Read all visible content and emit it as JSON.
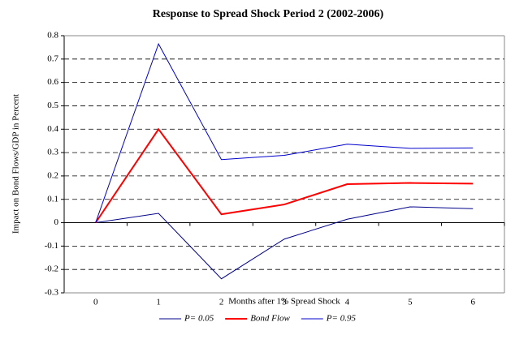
{
  "chart_data": {
    "type": "line",
    "title": "Response to Spread Shock Period 2 (2002-2006)",
    "x_label": "Months after 1% Spread Shock",
    "y_label": "Impact on Bond Flows/GDP in Percent",
    "categories": [
      "0",
      "1",
      "2",
      "3",
      "4",
      "5",
      "6"
    ],
    "series": [
      {
        "name": "P= 0.05",
        "color": "#00008b",
        "line_width": 1,
        "values": [
          0,
          0.04,
          -0.24,
          -0.07,
          0.015,
          0.068,
          0.06
        ]
      },
      {
        "name": "Bond Flow",
        "color": "#ff0000",
        "line_width": 2,
        "values": [
          0,
          0.4,
          0.036,
          0.078,
          0.165,
          0.17,
          0.167
        ]
      },
      {
        "name": "P= 0.95",
        "color": "#0000cd",
        "line_width": 1,
        "values": [
          0,
          0.765,
          0.27,
          0.288,
          0.336,
          0.318,
          0.32
        ]
      }
    ],
    "ylim": [
      -0.3,
      0.8
    ],
    "yticks": [
      -0.3,
      -0.2,
      -0.1,
      0,
      0.1,
      0.2,
      0.3,
      0.4,
      0.5,
      0.6,
      0.7,
      0.8
    ],
    "grid": true,
    "legend": "bottom"
  }
}
